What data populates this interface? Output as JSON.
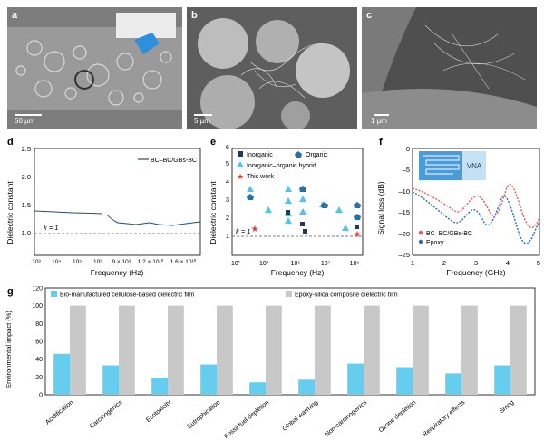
{
  "panels": {
    "a": {
      "letter": "a",
      "scale": "50 µm"
    },
    "b": {
      "letter": "b",
      "scale": "5 µm"
    },
    "c": {
      "letter": "c",
      "scale": "1 µm"
    }
  },
  "chart_d": {
    "letter": "d",
    "type": "line",
    "ylabel": "Dielectric constant",
    "xlabel": "Frequency (Hz)",
    "yticks": [
      "1.0",
      "1.5",
      "2.0",
      "2.5"
    ],
    "xticks_seg1": [
      "10³",
      "10⁴",
      "10⁵",
      "10⁶"
    ],
    "xticks_seg2": [
      "9 × 10⁹",
      "1.2 × 10¹⁰",
      "1.6 × 10¹⁰"
    ],
    "legend": "BC–BC/GBs-BC",
    "annotation": "k = 1",
    "ylim": [
      0.6,
      2.5
    ],
    "color": "#1f4e79"
  },
  "chart_e": {
    "letter": "e",
    "type": "scatter",
    "ylabel": "Dielectric constant",
    "xlabel": "Frequency (Hz)",
    "yticks": [
      "1",
      "2",
      "3",
      "4",
      "5",
      "6"
    ],
    "xticks": [
      "10¹",
      "10³",
      "10⁵",
      "10⁷",
      "10⁹"
    ],
    "annotation": "k = 1",
    "legend": {
      "inorganic": "Inorganic",
      "organic": "Organic",
      "hybrid": "Inorganic–organic hybrid",
      "this_work": "This work"
    }
  },
  "chart_f": {
    "letter": "f",
    "type": "line",
    "ylabel": "Signal loss (dB)",
    "xlabel": "Frequency (GHz)",
    "yticks": [
      "0",
      "–5",
      "–10",
      "–15",
      "–20",
      "–25"
    ],
    "xticks": [
      "1",
      "2",
      "3",
      "4",
      "5"
    ],
    "inset_label": "VNA",
    "legend": [
      "BC–BC/GBs-BC",
      "Epoxy"
    ],
    "colors": [
      "#e8585a",
      "#2f6fb5"
    ]
  },
  "chart_data": {
    "type": "bar",
    "letter": "g",
    "ylabel": "Environmental impact (%)",
    "ylim": [
      0,
      120
    ],
    "yticks": [
      "0",
      "20",
      "40",
      "60",
      "80",
      "100",
      "120"
    ],
    "categories": [
      "Acidification",
      "Carcinogenics",
      "Ecotoxicity",
      "Eutrophication",
      "Fossil fuel depletion",
      "Global warming",
      "Non-carcinogenics",
      "Ozone depletion",
      "Respiratory effects",
      "Smog"
    ],
    "series": [
      {
        "name": "Bio-manufactured cellulose-based dielectric film",
        "color": "#66cdee",
        "values": [
          46,
          33,
          19,
          34,
          14,
          17,
          35,
          31,
          24,
          33
        ]
      },
      {
        "name": "Epoxy-silica composite dielectric film",
        "color": "#c8c8c8",
        "values": [
          100,
          100,
          100,
          100,
          100,
          100,
          100,
          100,
          100,
          100
        ]
      }
    ]
  }
}
